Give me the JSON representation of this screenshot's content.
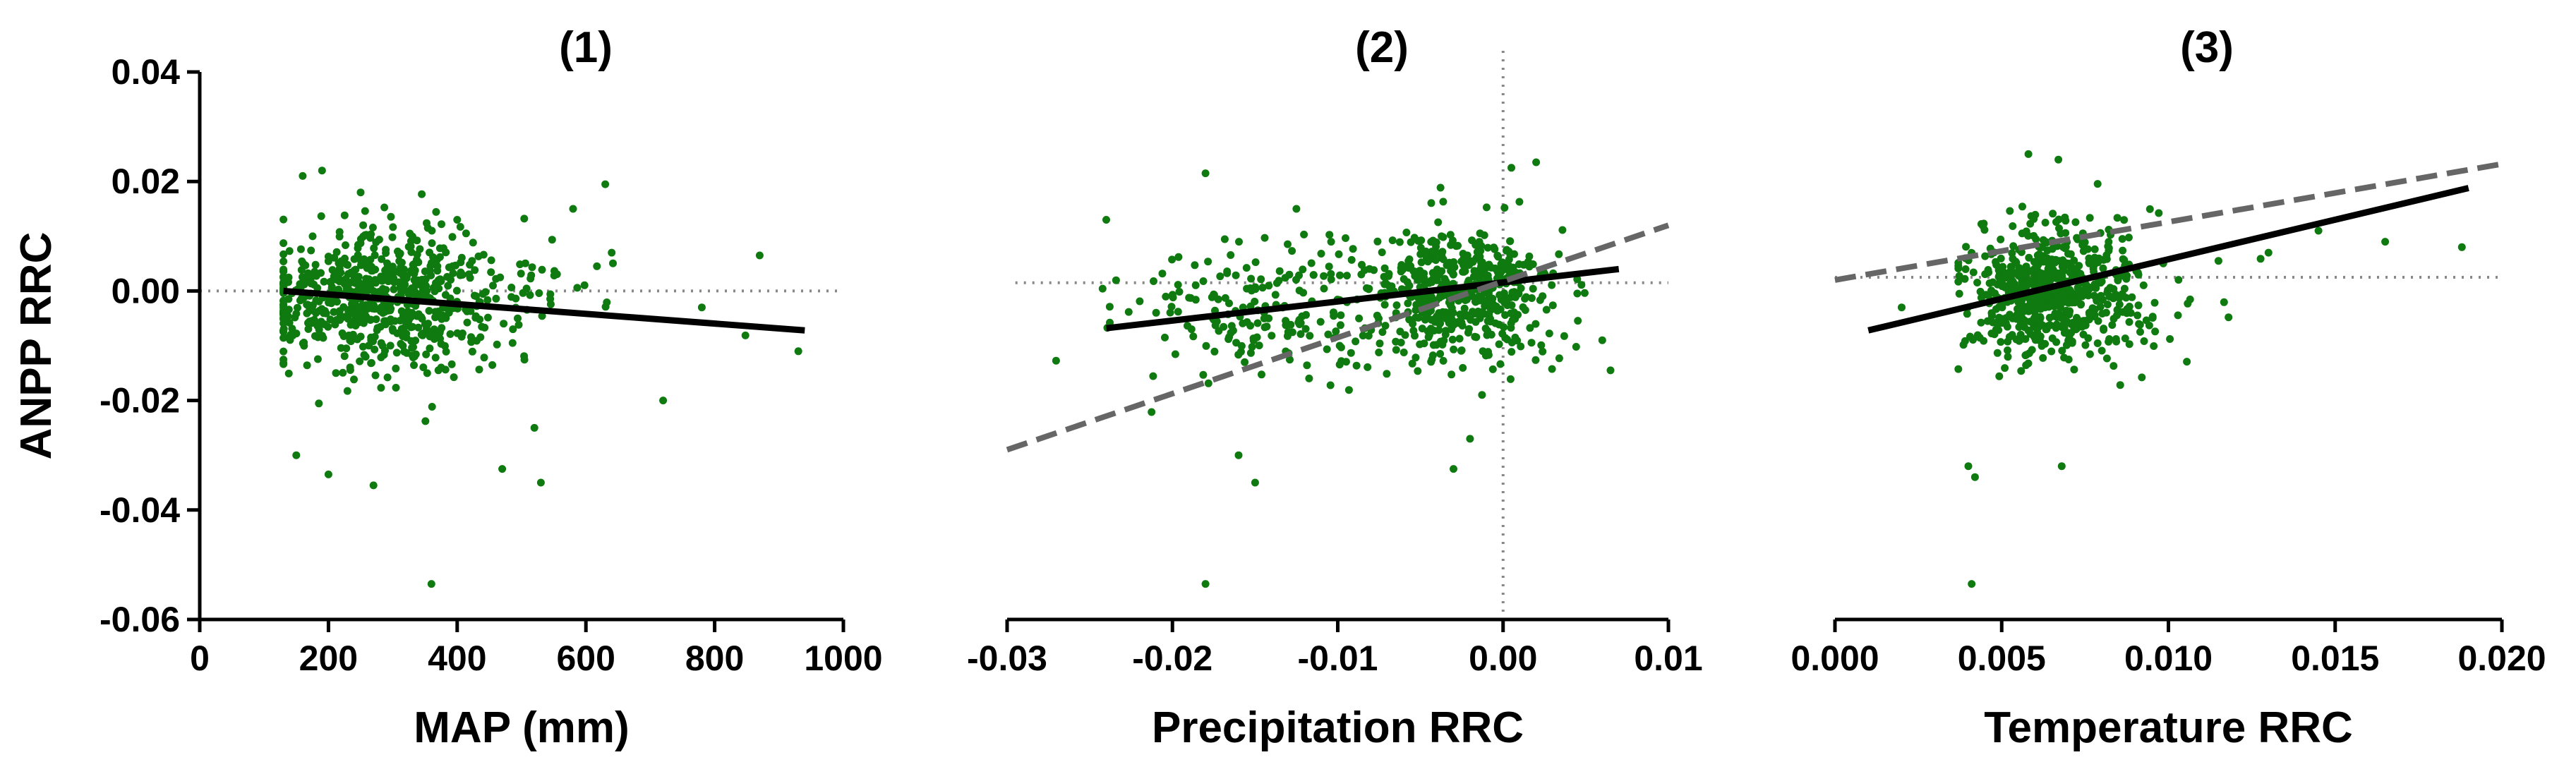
{
  "chart_data": [
    {
      "type": "scatter",
      "title": "(1)",
      "xlabel": "MAP (mm)",
      "ylabel": "ANPP RRC",
      "xlim": [
        0,
        1000
      ],
      "ylim": [
        -0.06,
        0.04
      ],
      "xticks": [
        0,
        200,
        400,
        600,
        800,
        1000
      ],
      "xtick_labels": [
        "0",
        "200",
        "400",
        "600",
        "800",
        "1000"
      ],
      "yticks": [
        -0.06,
        -0.04,
        -0.02,
        0.0,
        0.02,
        0.04
      ],
      "ytick_labels": [
        "-0.06",
        "-0.04",
        "-0.02",
        "0.00",
        "0.02",
        "0.04"
      ],
      "reference_lines": [
        {
          "orientation": "horizontal",
          "value": 0.0
        }
      ],
      "fit_lines": [
        {
          "style": "solid",
          "x": [
            130,
            940
          ],
          "y": [
            0.0,
            -0.0072
          ]
        }
      ],
      "cloud": {
        "x_center": 230,
        "x_spread": 130,
        "x_min": 130,
        "x_max": 930,
        "y_center": -0.001,
        "y_spread": 0.009,
        "n_points": 700
      },
      "points": {
        "x": [
          360,
          630,
          580,
          270,
          200,
          470,
          530,
          870,
          720,
          930,
          400,
          160,
          190,
          250,
          150,
          780,
          640,
          520
        ],
        "y": [
          -0.0535,
          0.0195,
          0.015,
          -0.0355,
          -0.0335,
          -0.0325,
          -0.035,
          0.0065,
          -0.02,
          -0.011,
          0.013,
          0.021,
          0.022,
          0.018,
          -0.03,
          -0.003,
          0.007,
          -0.025
        ]
      }
    },
    {
      "type": "scatter",
      "title": "(2)",
      "xlabel": "Precipitation RRC",
      "ylabel": "",
      "xlim": [
        -0.03,
        0.01
      ],
      "ylim": [
        -0.06,
        0.04
      ],
      "xticks": [
        -0.03,
        -0.02,
        -0.01,
        0.0,
        0.01
      ],
      "xtick_labels": [
        "-0.03",
        "-0.02",
        "-0.01",
        "0.00",
        "0.01"
      ],
      "reference_lines": [
        {
          "orientation": "horizontal",
          "value": 0.0015,
          "x_from": -0.0295
        },
        {
          "orientation": "vertical",
          "value": 0.0
        }
      ],
      "fit_lines": [
        {
          "style": "solid",
          "x": [
            -0.024,
            0.007
          ],
          "y": [
            -0.0068,
            0.004
          ]
        },
        {
          "style": "dashed",
          "x": [
            -0.03,
            0.01
          ],
          "y": [
            -0.029,
            0.012
          ]
        }
      ],
      "clusters": [
        {
          "x_center": -0.0025,
          "x_spread": 0.0028,
          "y_center": 0.0,
          "y_spread": 0.008,
          "n_points": 520
        },
        {
          "x_center": -0.015,
          "x_spread": 0.0045,
          "y_center": -0.004,
          "y_spread": 0.009,
          "n_points": 200
        }
      ],
      "points": {
        "x": [
          -0.018,
          -0.024,
          0.0065,
          0.006,
          -0.018,
          -0.015,
          -0.016,
          -0.0125,
          0.002,
          0.0005,
          -0.003,
          -0.002
        ],
        "y": [
          -0.0535,
          0.013,
          -0.0145,
          -0.009,
          0.0215,
          -0.035,
          -0.03,
          0.015,
          0.0235,
          0.0225,
          -0.0325,
          -0.027
        ]
      }
    },
    {
      "type": "scatter",
      "title": "(3)",
      "xlabel": "Temperature RRC",
      "ylabel": "",
      "xlim": [
        0.0,
        0.02
      ],
      "ylim": [
        -0.06,
        0.04
      ],
      "xticks": [
        0.0,
        0.005,
        0.01,
        0.015,
        0.02
      ],
      "xtick_labels": [
        "0.000",
        "0.005",
        "0.010",
        "0.015",
        "0.020"
      ],
      "reference_lines": [
        {
          "orientation": "horizontal",
          "value": 0.0025
        }
      ],
      "fit_lines": [
        {
          "style": "solid",
          "x": [
            0.001,
            0.019
          ],
          "y": [
            -0.0072,
            0.0188
          ]
        },
        {
          "style": "dashed",
          "x": [
            0.0,
            0.02
          ],
          "y": [
            0.002,
            0.0232
          ]
        }
      ],
      "cloud": {
        "x_center": 0.0058,
        "x_spread": 0.0017,
        "x_min": 0.0037,
        "x_max": 0.019,
        "y_center": 0.0,
        "y_spread": 0.008,
        "n_points": 680
      },
      "points": {
        "x": [
          0.0041,
          0.0188,
          0.0165,
          0.0145,
          0.013,
          0.0115,
          0.002,
          0.0042,
          0.004,
          0.0068,
          0.0058,
          0.0067
        ],
        "y": [
          -0.0535,
          0.008,
          0.009,
          0.011,
          0.007,
          0.0055,
          -0.003,
          -0.034,
          -0.032,
          -0.032,
          0.025,
          0.024
        ]
      }
    }
  ]
}
